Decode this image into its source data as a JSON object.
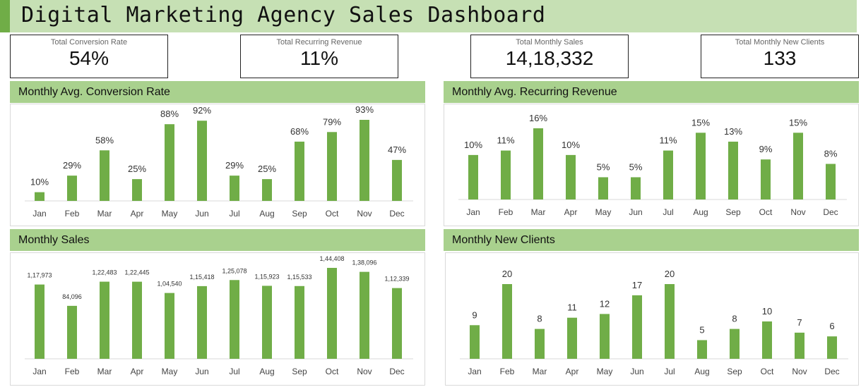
{
  "page": {
    "title": "Digital Marketing Agency Sales Dashboard"
  },
  "colors": {
    "bar": "#70ad47",
    "header": "#a9d18e",
    "title_bg": "#c6e0b4"
  },
  "kpis": [
    {
      "label": "Total Conversion Rate",
      "value": "54%"
    },
    {
      "label": "Total Recurring Revenue",
      "value": "11%"
    },
    {
      "label": "Total Monthly Sales",
      "value": "14,18,332"
    },
    {
      "label": "Total Monthly New Clients",
      "value": "133"
    }
  ],
  "chart_data": [
    {
      "type": "bar",
      "title": "Monthly Avg. Conversion Rate",
      "categories": [
        "Jan",
        "Feb",
        "Mar",
        "Apr",
        "May",
        "Jun",
        "Jul",
        "Aug",
        "Sep",
        "Oct",
        "Nov",
        "Dec"
      ],
      "values": [
        10,
        29,
        58,
        25,
        88,
        92,
        29,
        25,
        68,
        79,
        93,
        47
      ],
      "labels": [
        "10%",
        "29%",
        "58%",
        "25%",
        "88%",
        "92%",
        "29%",
        "25%",
        "68%",
        "79%",
        "93%",
        "47%"
      ],
      "ylim": [
        0,
        100
      ],
      "grid": false,
      "legend": "none"
    },
    {
      "type": "bar",
      "title": "Monthly Avg. Recurring Revenue",
      "categories": [
        "Jan",
        "Feb",
        "Mar",
        "Apr",
        "May",
        "Jun",
        "Jul",
        "Aug",
        "Sep",
        "Oct",
        "Nov",
        "Dec"
      ],
      "values": [
        10,
        11,
        16,
        10,
        5,
        5,
        11,
        15,
        13,
        9,
        15,
        8
      ],
      "labels": [
        "10%",
        "11%",
        "16%",
        "10%",
        "5%",
        "5%",
        "11%",
        "15%",
        "13%",
        "9%",
        "15%",
        "8%"
      ],
      "ylim": [
        0,
        17
      ],
      "grid": false,
      "legend": "none"
    },
    {
      "type": "bar",
      "title": "Monthly Sales",
      "categories": [
        "Jan",
        "Feb",
        "Mar",
        "Apr",
        "May",
        "Jun",
        "Jul",
        "Aug",
        "Sep",
        "Oct",
        "Nov",
        "Dec"
      ],
      "values": [
        117973,
        84096,
        122483,
        122445,
        104540,
        115418,
        125078,
        115923,
        115533,
        144408,
        138096,
        112339
      ],
      "labels": [
        "1,17,973",
        "84,096",
        "1,22,483",
        "1,22,445",
        "1,04,540",
        "1,15,418",
        "1,25,078",
        "1,15,923",
        "1,15,533",
        "1,44,408",
        "1,38,096",
        "1,12,339"
      ],
      "ylim": [
        0,
        160000
      ],
      "grid": false,
      "legend": "none"
    },
    {
      "type": "bar",
      "title": "Monthly New Clients",
      "categories": [
        "Jan",
        "Feb",
        "Mar",
        "Apr",
        "May",
        "Jun",
        "Jul",
        "Aug",
        "Sep",
        "Oct",
        "Nov",
        "Dec"
      ],
      "values": [
        9,
        20,
        8,
        11,
        12,
        17,
        20,
        5,
        8,
        10,
        7,
        6
      ],
      "labels": [
        "9",
        "20",
        "8",
        "11",
        "12",
        "17",
        "20",
        "5",
        "8",
        "10",
        "7",
        "6"
      ],
      "ylim": [
        0,
        24
      ],
      "grid": false,
      "legend": "none"
    }
  ]
}
